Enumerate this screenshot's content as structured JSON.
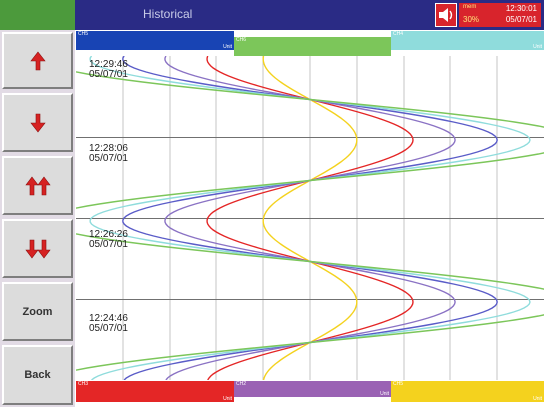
{
  "header": {
    "title": "Historical",
    "memory_label": "mem",
    "memory_percent": "30%",
    "clock_time": "12:30:01",
    "clock_date": "05/07/01"
  },
  "sidebar": {
    "buttons": [
      {
        "name": "scroll-up-button",
        "label": ""
      },
      {
        "name": "scroll-down-button",
        "label": ""
      },
      {
        "name": "page-up-button",
        "label": ""
      },
      {
        "name": "page-down-button",
        "label": ""
      },
      {
        "name": "zoom-button",
        "label": "Zoom"
      },
      {
        "name": "back-button",
        "label": "Back"
      }
    ]
  },
  "channels_top": [
    {
      "name": "CH5",
      "unit": "Unit",
      "color": "#1844b4"
    },
    {
      "name": "CH6",
      "unit": "",
      "color": "#7cc65a"
    },
    {
      "name": "CH4",
      "unit": "Unit",
      "color": "#8fdcdc"
    }
  ],
  "channels_bottom": [
    {
      "name": "CH3",
      "unit": "Unit",
      "color": "#e42626"
    },
    {
      "name": "CH2",
      "unit": "Unit",
      "color": "#9a62b4"
    },
    {
      "name": "CH5",
      "unit": "Unit",
      "color": "#f4d21e"
    }
  ],
  "timestamps": [
    {
      "time": "12:29:46",
      "date": "05/07/01"
    },
    {
      "time": "12:28:06",
      "date": "05/07/01"
    },
    {
      "time": "12:26:26",
      "date": "05/07/01"
    },
    {
      "time": "12:24:46",
      "date": "05/07/01"
    }
  ],
  "traces": [
    {
      "color": "#f4d21e",
      "amplitude": 0.1
    },
    {
      "color": "#e42626",
      "amplitude": 0.22
    },
    {
      "color": "#8a72c4",
      "amplitude": 0.31
    },
    {
      "color": "#5a5cc8",
      "amplitude": 0.4
    },
    {
      "color": "#8fdcdc",
      "amplitude": 0.47
    },
    {
      "color": "#7cc65a",
      "amplitude": 0.57
    }
  ]
}
